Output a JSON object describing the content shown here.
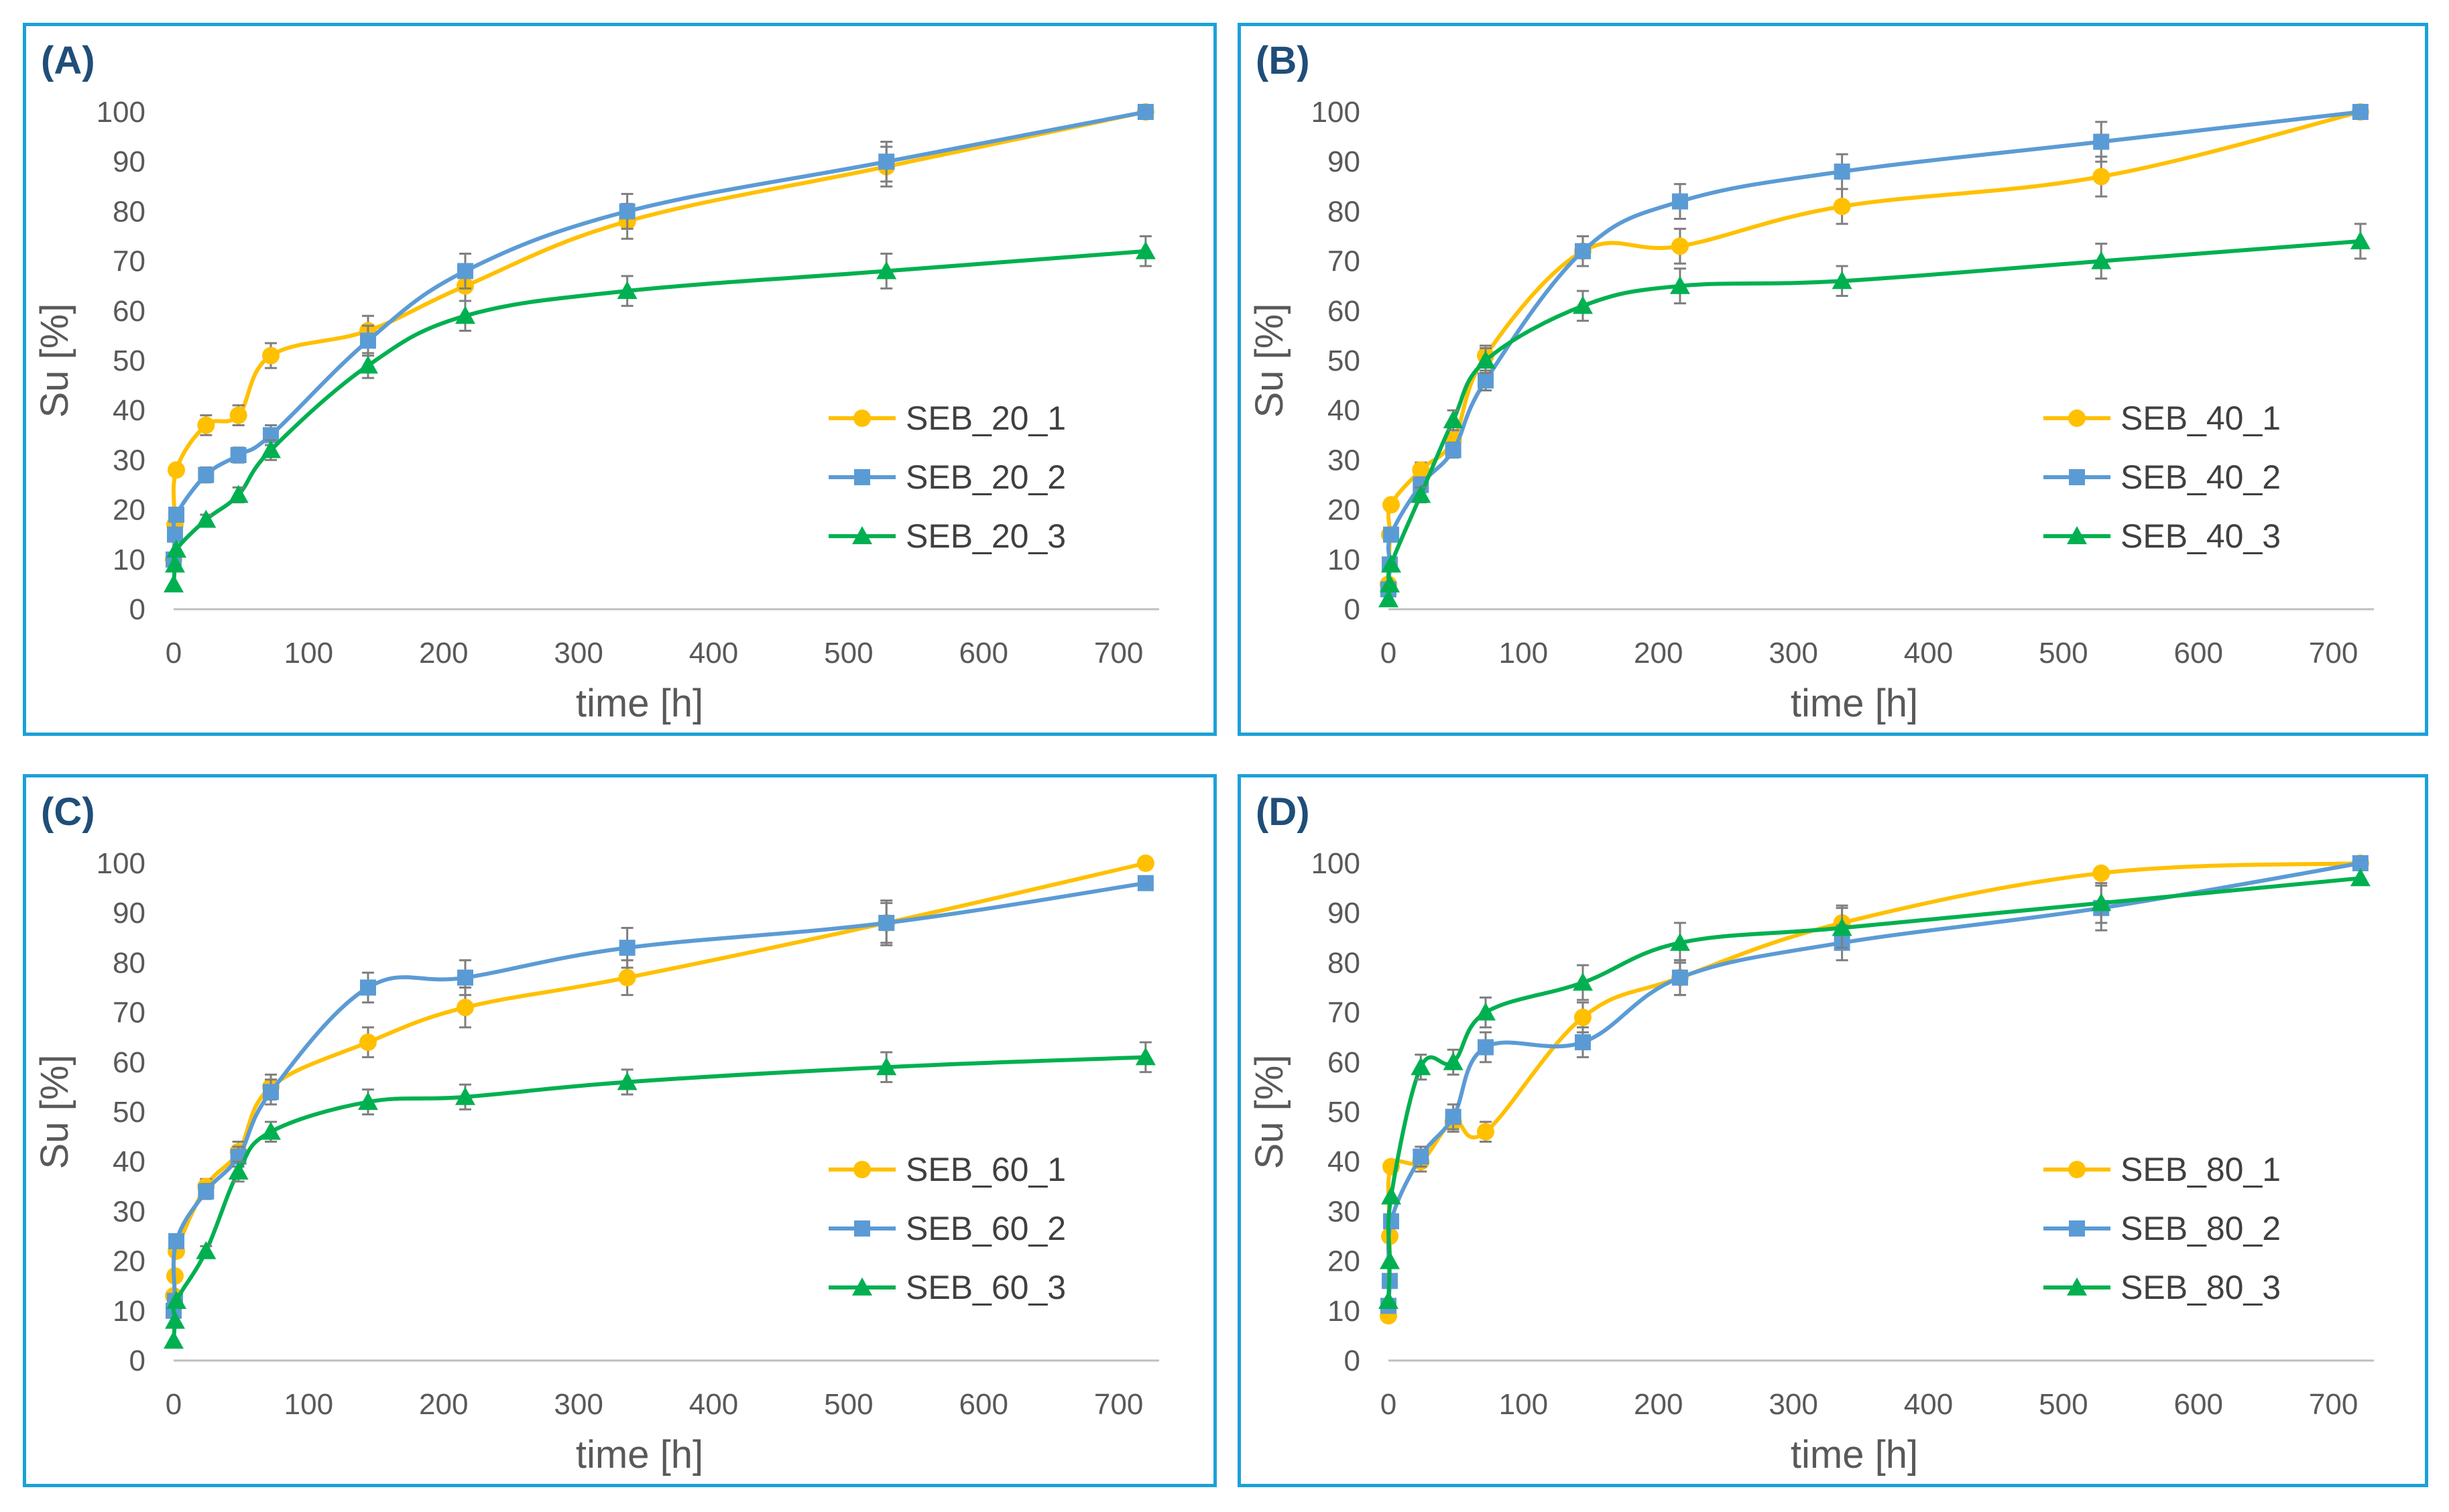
{
  "colors": {
    "border": "#1ba1d8",
    "label": "#1f4e79",
    "series": [
      "#ffc000",
      "#5b9bd5",
      "#00b050"
    ],
    "axis": "#bfbfbf",
    "text": "#595959",
    "errorbar": "#7f7f7f"
  },
  "chart_data": [
    {
      "panel_label": "(A)",
      "type": "line",
      "xlabel": "time [h]",
      "ylabel": "Su [%]",
      "xlim": [
        0,
        700
      ],
      "ylim": [
        0,
        100
      ],
      "xticks": [
        0,
        100,
        200,
        300,
        400,
        500,
        600,
        700
      ],
      "yticks": [
        0,
        10,
        20,
        30,
        40,
        50,
        60,
        70,
        80,
        90,
        100
      ],
      "legend_position": "right",
      "series": [
        {
          "name": "SEB_20_1",
          "marker": "circle",
          "x": [
            0,
            1,
            2,
            24,
            48,
            72,
            144,
            216,
            336,
            528,
            720
          ],
          "y": [
            10,
            17,
            28,
            37,
            39,
            51,
            56,
            65,
            78,
            89,
            100
          ],
          "err": [
            0,
            0,
            0,
            2,
            2,
            2.5,
            3,
            3,
            3.5,
            4,
            0
          ]
        },
        {
          "name": "SEB_20_2",
          "marker": "square",
          "x": [
            0,
            1,
            2,
            24,
            48,
            72,
            144,
            216,
            336,
            528,
            720
          ],
          "y": [
            10,
            15,
            19,
            27,
            31,
            35,
            54,
            68,
            80,
            90,
            100
          ],
          "err": [
            0,
            0,
            0,
            1.5,
            1.5,
            2,
            3,
            3.5,
            3.5,
            4,
            0
          ]
        },
        {
          "name": "SEB_20_3",
          "marker": "triangle",
          "x": [
            0,
            1,
            2,
            24,
            48,
            72,
            144,
            216,
            336,
            528,
            720
          ],
          "y": [
            5,
            9,
            12,
            18,
            23,
            32,
            49,
            59,
            64,
            68,
            72
          ],
          "err": [
            0,
            0,
            0,
            1,
            1.5,
            2,
            2.5,
            3,
            3,
            3.5,
            3
          ]
        }
      ]
    },
    {
      "panel_label": "(B)",
      "type": "line",
      "xlabel": "time [h]",
      "ylabel": "Su [%]",
      "xlim": [
        0,
        700
      ],
      "ylim": [
        0,
        100
      ],
      "xticks": [
        0,
        100,
        200,
        300,
        400,
        500,
        600,
        700
      ],
      "yticks": [
        0,
        10,
        20,
        30,
        40,
        50,
        60,
        70,
        80,
        90,
        100
      ],
      "legend_position": "right",
      "series": [
        {
          "name": "SEB_40_1",
          "marker": "circle",
          "x": [
            0,
            1,
            2,
            24,
            48,
            72,
            144,
            216,
            336,
            528,
            720
          ],
          "y": [
            5,
            15,
            21,
            28,
            34,
            51,
            72,
            73,
            81,
            87,
            100
          ],
          "err": [
            0,
            0,
            0,
            1.5,
            2,
            2,
            3,
            3.5,
            3.5,
            4,
            0
          ]
        },
        {
          "name": "SEB_40_2",
          "marker": "square",
          "x": [
            0,
            1,
            2,
            24,
            48,
            72,
            144,
            216,
            336,
            528,
            720
          ],
          "y": [
            4,
            9,
            15,
            25,
            32,
            46,
            72,
            82,
            88,
            94,
            100
          ],
          "err": [
            0,
            0,
            0,
            1.5,
            1.5,
            2,
            3,
            3.5,
            3.5,
            4,
            0
          ]
        },
        {
          "name": "SEB_40_3",
          "marker": "triangle",
          "x": [
            0,
            1,
            2,
            24,
            48,
            72,
            144,
            216,
            336,
            528,
            720
          ],
          "y": [
            2,
            5,
            9,
            23,
            38,
            50,
            61,
            65,
            66,
            70,
            74
          ],
          "err": [
            0,
            0,
            0,
            1.5,
            2,
            2.5,
            3,
            3.5,
            3,
            3.5,
            3.5
          ]
        }
      ]
    },
    {
      "panel_label": "(C)",
      "type": "line",
      "xlabel": "time [h]",
      "ylabel": "Su [%]",
      "xlim": [
        0,
        700
      ],
      "ylim": [
        0,
        100
      ],
      "xticks": [
        0,
        100,
        200,
        300,
        400,
        500,
        600,
        700
      ],
      "yticks": [
        0,
        10,
        20,
        30,
        40,
        50,
        60,
        70,
        80,
        90,
        100
      ],
      "legend_position": "right",
      "series": [
        {
          "name": "SEB_60_1",
          "marker": "circle",
          "x": [
            0,
            1,
            2,
            24,
            48,
            72,
            144,
            216,
            336,
            528,
            720
          ],
          "y": [
            13,
            17,
            22,
            35,
            42,
            55,
            64,
            71,
            77,
            88,
            100
          ],
          "err": [
            0,
            0,
            0,
            1.5,
            2,
            2.5,
            3,
            4,
            3.5,
            4,
            0
          ]
        },
        {
          "name": "SEB_60_2",
          "marker": "square",
          "x": [
            0,
            1,
            2,
            24,
            48,
            72,
            144,
            216,
            336,
            528,
            720
          ],
          "y": [
            10,
            12,
            24,
            34,
            41,
            54,
            75,
            77,
            83,
            88,
            96
          ],
          "err": [
            0,
            0,
            0,
            1.5,
            2,
            2.5,
            3,
            3.5,
            4,
            4.5,
            0
          ]
        },
        {
          "name": "SEB_60_3",
          "marker": "triangle",
          "x": [
            0,
            1,
            2,
            24,
            48,
            72,
            144,
            216,
            336,
            528,
            720
          ],
          "y": [
            4,
            8,
            12,
            22,
            38,
            46,
            52,
            53,
            56,
            59,
            61
          ],
          "err": [
            0,
            0,
            0,
            1,
            2,
            2,
            2.5,
            2.5,
            2.5,
            3,
            3
          ]
        }
      ]
    },
    {
      "panel_label": "(D)",
      "type": "line",
      "xlabel": "time [h]",
      "ylabel": "Su [%]",
      "xlim": [
        0,
        700
      ],
      "ylim": [
        0,
        100
      ],
      "xticks": [
        0,
        100,
        200,
        300,
        400,
        500,
        600,
        700
      ],
      "yticks": [
        0,
        10,
        20,
        30,
        40,
        50,
        60,
        70,
        80,
        90,
        100
      ],
      "legend_position": "right",
      "series": [
        {
          "name": "SEB_80_1",
          "marker": "circle",
          "x": [
            0,
            1,
            2,
            24,
            48,
            72,
            144,
            216,
            336,
            528,
            720
          ],
          "y": [
            9,
            25,
            39,
            40,
            48,
            46,
            69,
            77,
            88,
            98,
            100
          ],
          "err": [
            0,
            0,
            0,
            2,
            2,
            2,
            3,
            3.5,
            3.5,
            0,
            0
          ]
        },
        {
          "name": "SEB_80_2",
          "marker": "square",
          "x": [
            0,
            1,
            2,
            24,
            48,
            72,
            144,
            216,
            336,
            528,
            720
          ],
          "y": [
            11,
            16,
            28,
            41,
            49,
            63,
            64,
            77,
            84,
            91,
            100
          ],
          "err": [
            0,
            0,
            0,
            2,
            2.5,
            3,
            3,
            3.5,
            3.5,
            4.5,
            0
          ]
        },
        {
          "name": "SEB_80_3",
          "marker": "triangle",
          "x": [
            0,
            1,
            2,
            24,
            48,
            72,
            144,
            216,
            336,
            528,
            720
          ],
          "y": [
            12,
            20,
            33,
            59,
            60,
            70,
            76,
            84,
            87,
            92,
            97
          ],
          "err": [
            0,
            0,
            0,
            2.5,
            2.5,
            3,
            3.5,
            4,
            4,
            4,
            0
          ]
        }
      ]
    }
  ]
}
